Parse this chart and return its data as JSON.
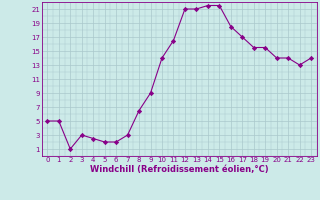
{
  "x": [
    0,
    1,
    2,
    3,
    4,
    5,
    6,
    7,
    8,
    9,
    10,
    11,
    12,
    13,
    14,
    15,
    16,
    17,
    18,
    19,
    20,
    21,
    22,
    23
  ],
  "y": [
    5,
    5,
    1,
    3,
    2.5,
    2,
    2,
    3,
    6.5,
    9,
    14,
    16.5,
    21,
    21,
    21.5,
    21.5,
    18.5,
    17,
    15.5,
    15.5,
    14,
    14,
    13,
    14
  ],
  "line_color": "#880088",
  "marker": "D",
  "marker_size": 2.2,
  "bg_color": "#cceae8",
  "grid_color": "#aac8cc",
  "xlabel": "Windchill (Refroidissement éolien,°C)",
  "xlabel_color": "#880088",
  "tick_color": "#880088",
  "ylim": [
    0,
    22
  ],
  "yticks": [
    1,
    3,
    5,
    7,
    9,
    11,
    13,
    15,
    17,
    19,
    21
  ],
  "xlim": [
    -0.5,
    23.5
  ],
  "xticks": [
    0,
    1,
    2,
    3,
    4,
    5,
    6,
    7,
    8,
    9,
    10,
    11,
    12,
    13,
    14,
    15,
    16,
    17,
    18,
    19,
    20,
    21,
    22,
    23
  ],
  "spine_color": "#880088",
  "tick_fontsize": 5.0,
  "xlabel_fontsize": 6.0
}
